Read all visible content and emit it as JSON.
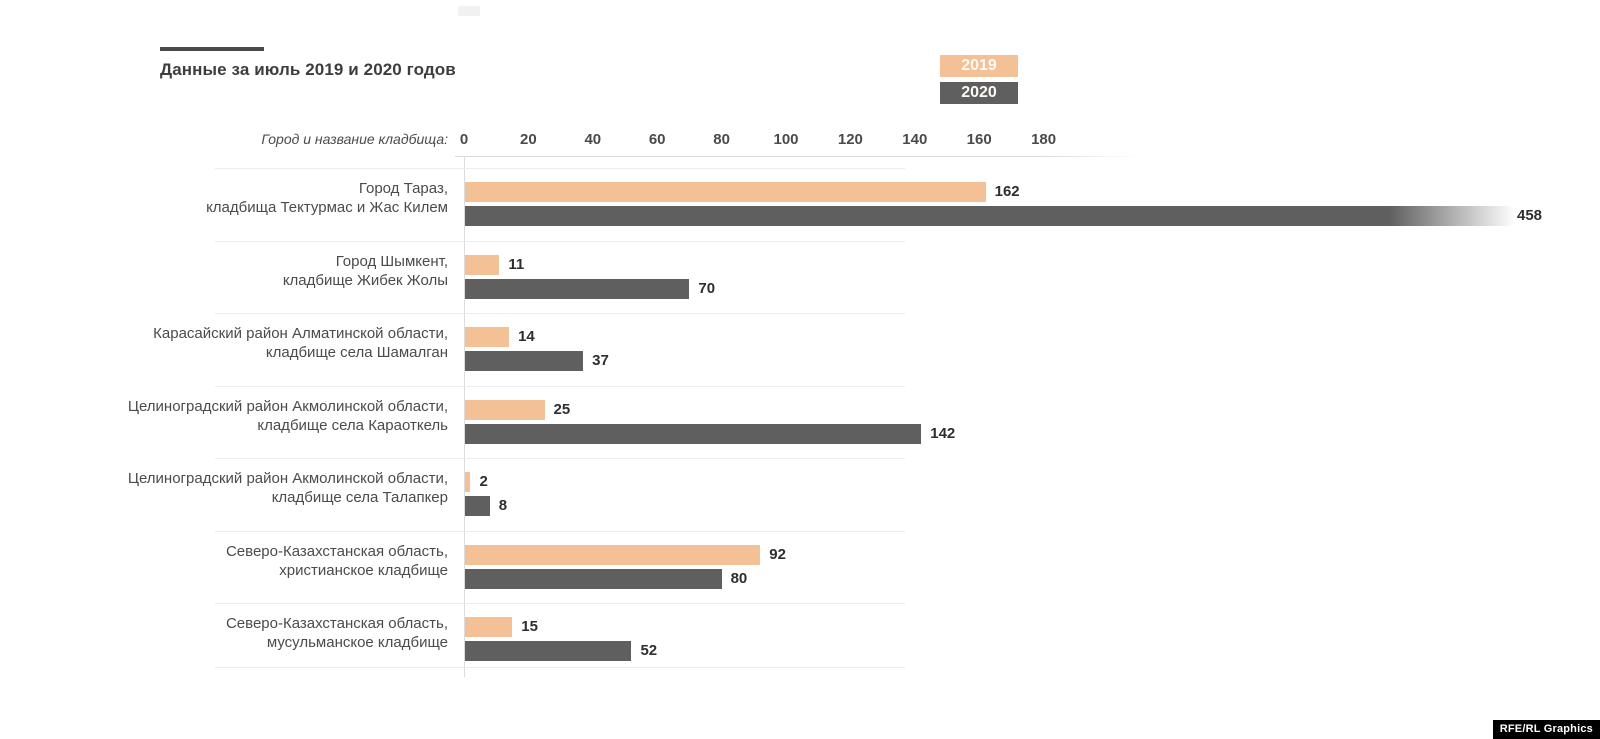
{
  "title": "Данные за июль 2019 и 2020 годов",
  "axis_label": "Город и название кладбища:",
  "footer_badge": "RFE/RL Graphics",
  "colors": {
    "series_2019": "#f4c096",
    "series_2020": "#5f5f5f",
    "title_text": "#3d3d3d",
    "separator": "#ececec"
  },
  "chart_data": {
    "type": "bar",
    "orientation": "horizontal",
    "title": "Данные за июль 2019 и 2020 годов",
    "xlabel": "",
    "ylabel": "Город и название кладбища:",
    "xlim": [
      0,
      180
    ],
    "x_ticks": [
      0,
      20,
      40,
      60,
      80,
      100,
      120,
      140,
      160,
      180
    ],
    "grid": "row-separators",
    "legend_position": "top-right",
    "categories": [
      [
        "Город Тараз,",
        "кладбища Тектурмас и Жас Килем"
      ],
      [
        "Город Шымкент,",
        "кладбище Жибек Жолы"
      ],
      [
        "Карасайский район Алматинской области,",
        "кладбище села Шамалган"
      ],
      [
        "Целиноградский район Акмолинской области,",
        "кладбище села Караоткель"
      ],
      [
        "Целиноградский район Акмолинской области,",
        "кладбище села Талапкер"
      ],
      [
        "Северо-Казахстанская область,",
        "христианское кладбище"
      ],
      [
        "Северо-Казахстанская область,",
        "мусульманское кладбище"
      ]
    ],
    "series": [
      {
        "name": "2019",
        "color": "#f4c096",
        "values": [
          162,
          11,
          14,
          25,
          2,
          92,
          15
        ]
      },
      {
        "name": "2020",
        "color": "#5f5f5f",
        "values": [
          458,
          70,
          37,
          142,
          8,
          80,
          52
        ]
      }
    ],
    "overflow_note": "Бар 458 выходит за пределы шкалы и обрезан градиентом"
  }
}
